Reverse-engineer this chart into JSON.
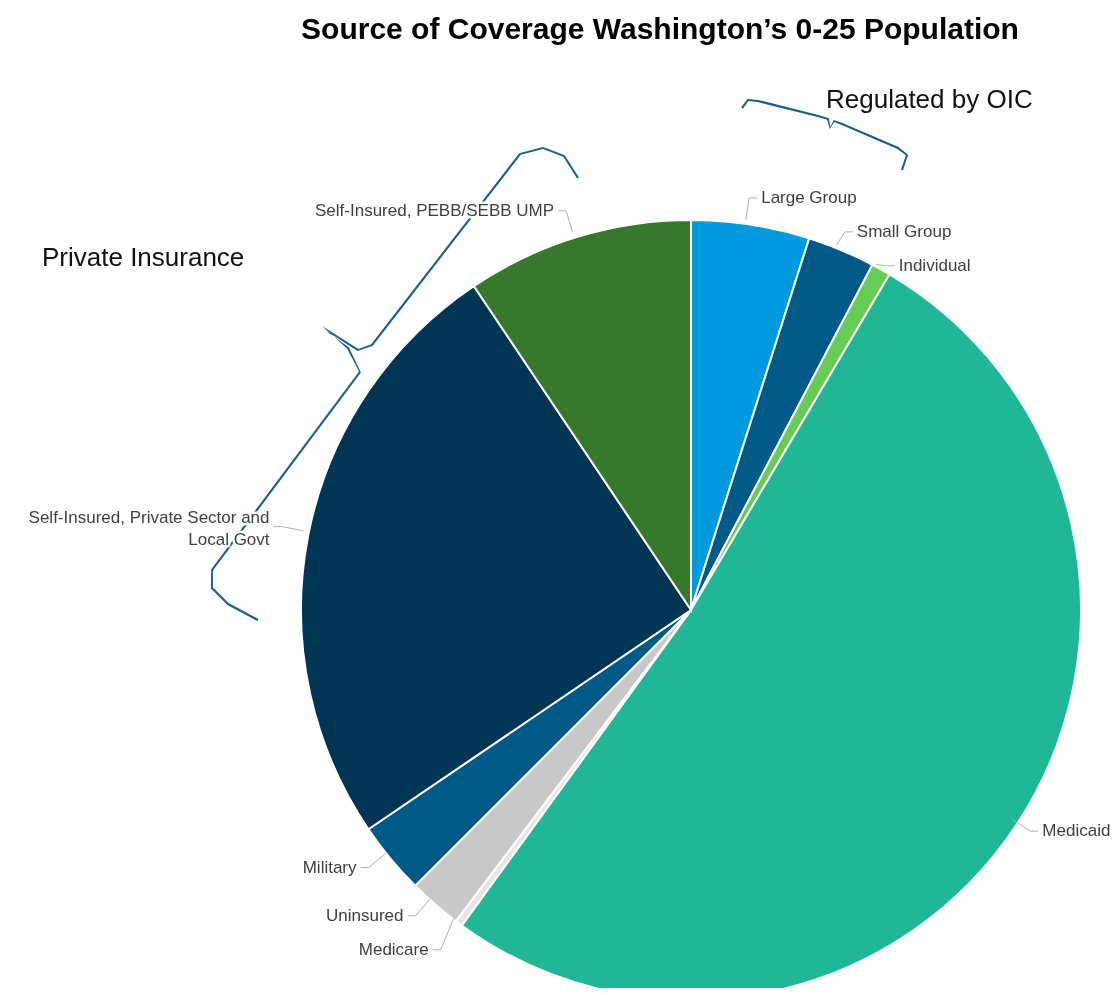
{
  "chart_data": {
    "type": "pie",
    "title": "Source of Coverage Washington’s 0-25 Population",
    "categories": [
      "Large Group",
      "Small Group",
      "Individual",
      "Medicaid",
      "Medicare",
      "Uninsured",
      "Military",
      "Self-Insured, Private Sector and Local Govt",
      "Self-Insured, PEBB/SEBB UMP"
    ],
    "values": [
      4.9,
      2.8,
      0.8,
      51.5,
      0.3,
      2.2,
      3.0,
      25.1,
      9.4
    ],
    "colors": [
      "#0099dd",
      "#005a87",
      "#66cc55",
      "#1fb795",
      "#e6e6e6",
      "#c8c8c8",
      "#005a87",
      "#003654",
      "#37782c"
    ],
    "annotations": [
      "Regulated by OIC",
      "Private Insurance"
    ]
  }
}
